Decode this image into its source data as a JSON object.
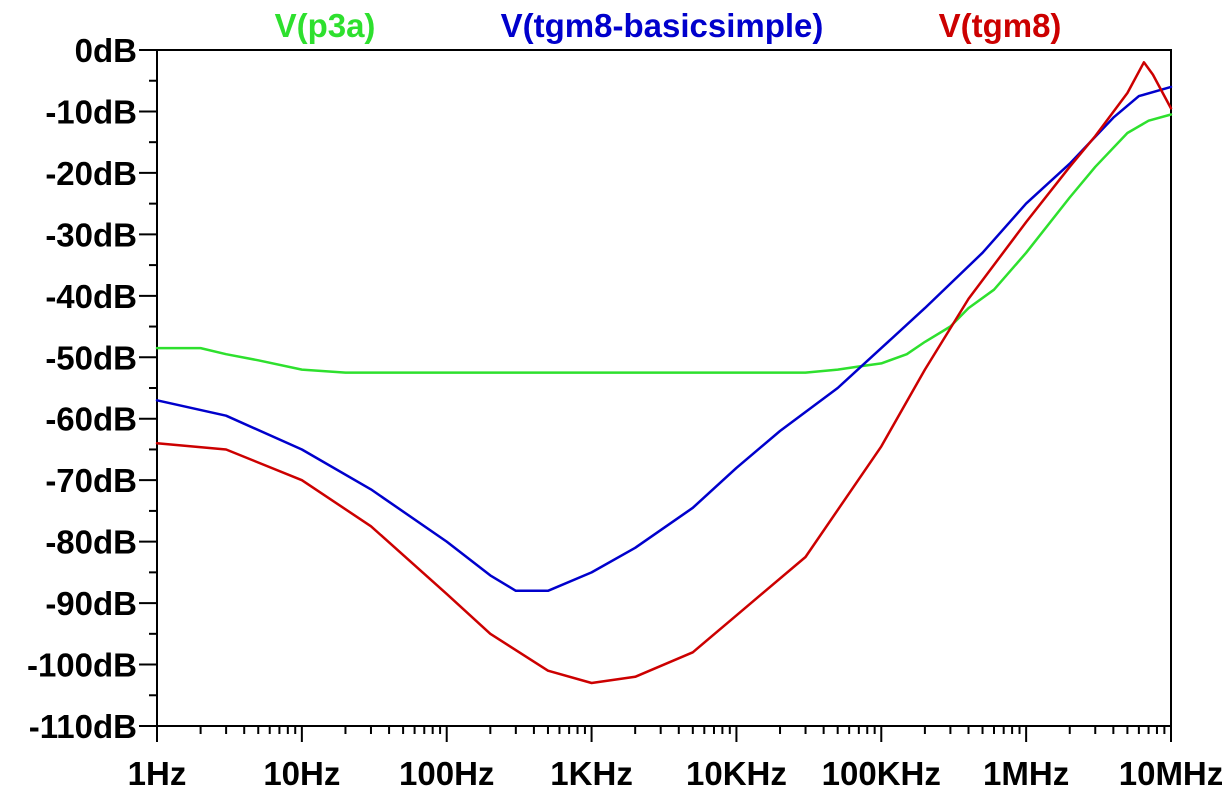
{
  "chart_data": {
    "type": "line",
    "x_scale": "log",
    "xlim": [
      1,
      10000000
    ],
    "ylim": [
      -110,
      0
    ],
    "x_ticks": [
      {
        "value": 1,
        "label": "1Hz"
      },
      {
        "value": 10,
        "label": "10Hz"
      },
      {
        "value": 100,
        "label": "100Hz"
      },
      {
        "value": 1000,
        "label": "1KHz"
      },
      {
        "value": 10000,
        "label": "10KHz"
      },
      {
        "value": 100000,
        "label": "100KHz"
      },
      {
        "value": 1000000,
        "label": "1MHz"
      },
      {
        "value": 10000000,
        "label": "10MHz"
      }
    ],
    "y_ticks": [
      {
        "value": 0,
        "label": "0dB"
      },
      {
        "value": -10,
        "label": "-10dB"
      },
      {
        "value": -20,
        "label": "-20dB"
      },
      {
        "value": -30,
        "label": "-30dB"
      },
      {
        "value": -40,
        "label": "-40dB"
      },
      {
        "value": -50,
        "label": "-50dB"
      },
      {
        "value": -60,
        "label": "-60dB"
      },
      {
        "value": -70,
        "label": "-70dB"
      },
      {
        "value": -80,
        "label": "-80dB"
      },
      {
        "value": -90,
        "label": "-90dB"
      },
      {
        "value": -100,
        "label": "-100dB"
      },
      {
        "value": -110,
        "label": "-110dB"
      }
    ],
    "grid": false,
    "legend_position": "top",
    "series": [
      {
        "name": "V(p3a)",
        "color": "#2ee02e",
        "x": [
          1,
          2,
          3,
          5,
          10,
          20,
          100,
          1000,
          10000,
          30000,
          50000,
          70000,
          100000,
          150000,
          200000,
          300000,
          400000,
          600000,
          1000000,
          2000000,
          3000000,
          5000000,
          7000000,
          10000000
        ],
        "y": [
          -48.5,
          -48.5,
          -49.5,
          -50.5,
          -52,
          -52.5,
          -52.5,
          -52.5,
          -52.5,
          -52.5,
          -52,
          -51.5,
          -51,
          -49.5,
          -47.5,
          -45,
          -42,
          -39,
          -33,
          -24,
          -19,
          -13.5,
          -11.5,
          -10.5
        ]
      },
      {
        "name": "V(tgm8-basicsimple)",
        "color": "#0000cc",
        "x": [
          1,
          3,
          10,
          30,
          100,
          200,
          300,
          500,
          1000,
          2000,
          5000,
          10000,
          20000,
          50000,
          100000,
          200000,
          500000,
          1000000,
          2000000,
          4000000,
          6000000,
          10000000
        ],
        "y": [
          -57,
          -59.5,
          -65,
          -71.5,
          -80,
          -85.5,
          -88,
          -88,
          -85,
          -81,
          -74.5,
          -68,
          -62,
          -55,
          -48.5,
          -42,
          -33,
          -25,
          -18.5,
          -11,
          -7.5,
          -6
        ]
      },
      {
        "name": "V(tgm8)",
        "color": "#cc0000",
        "x": [
          1,
          3,
          10,
          30,
          100,
          200,
          500,
          1000,
          2000,
          5000,
          10000,
          30000,
          100000,
          200000,
          400000,
          1000000,
          2000000,
          3000000,
          5000000,
          6500000,
          7500000,
          10000000
        ],
        "y": [
          -64,
          -65,
          -70,
          -77.5,
          -88.5,
          -95,
          -101,
          -103,
          -102,
          -98,
          -92,
          -82.5,
          -64.5,
          -52,
          -40.5,
          -28,
          -19,
          -14,
          -7,
          -2,
          -4,
          -9.5
        ]
      }
    ]
  }
}
